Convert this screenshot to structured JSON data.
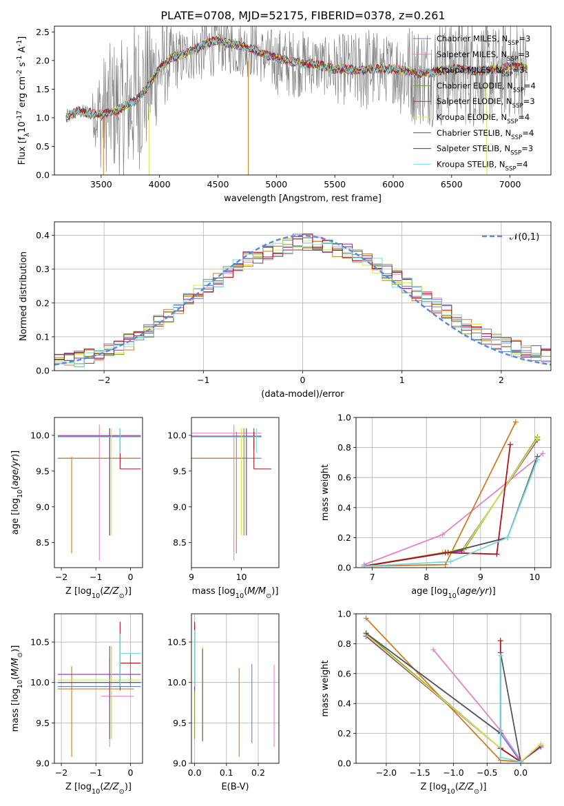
{
  "figure": {
    "title": "PLATE=0708, MJD=52175, FIBERID=0378, z=0.261"
  },
  "legend_entries": [
    {
      "label": "Chabrier MILES, N$_{SSP}$=3",
      "color": "#5b7fd6"
    },
    {
      "label": "Salpeter MILES, N$_{SSP}$=3",
      "color": "#e085c0"
    },
    {
      "label": "Kroupa MILES, N$_{SSP}$=3",
      "color": "#d07a20"
    },
    {
      "label": "Chabrier ELODIE, N$_{SSP}$=4",
      "color": "#7a9a3a"
    },
    {
      "label": "Salpeter ELODIE, N$_{SSP}$=3",
      "color": "#8a2aa8"
    },
    {
      "label": "Kroupa ELODIE, N$_{SSP}$=4",
      "color": "#d4e84a"
    },
    {
      "label": "Chabrier STELIB, N$_{SSP}$=4",
      "color": "#555555"
    },
    {
      "label": "Salpeter STELIB, N$_{SSP}$=3",
      "color": "#b0101a"
    },
    {
      "label": "Kroupa STELIB, N$_{SSP}$=4",
      "color": "#7ad8dc"
    }
  ],
  "chart_data": [
    {
      "id": "spectrum",
      "type": "line",
      "xlabel": "wavelength [Angstrom, rest frame]",
      "ylabel": "Flux [f$_\\lambda$10$^{-17}$ erg cm$^{-2}$ s$^{-1}$ A$^{-1}$]",
      "xlim": [
        3100,
        7350
      ],
      "ylim": [
        0,
        2.6
      ],
      "xticks": [
        3500,
        4000,
        4500,
        5000,
        5500,
        6000,
        6500,
        7000
      ],
      "yticks": [
        0.0,
        0.5,
        1.0,
        1.5,
        2.0,
        2.5
      ],
      "data_series": {
        "name": "data",
        "color": "#808080",
        "x": [
          3200,
          3300,
          3400,
          3500,
          3600,
          3700,
          3800,
          3900,
          4000,
          4100,
          4200,
          4300,
          4400,
          4500,
          4600,
          4700,
          4800,
          4900,
          5000,
          5100,
          5200,
          5300,
          5400,
          5500,
          5600,
          5700,
          5800,
          5900,
          6000,
          6100,
          6200,
          6300,
          6400,
          6500,
          6600,
          6700,
          6800,
          6900,
          7000,
          7100,
          7150
        ],
        "y": [
          1.0,
          1.1,
          1.1,
          1.05,
          1.2,
          1.15,
          1.35,
          1.6,
          1.85,
          2.0,
          2.05,
          2.15,
          2.2,
          2.3,
          2.25,
          2.2,
          2.2,
          2.05,
          2.0,
          1.95,
          1.95,
          1.95,
          1.9,
          1.85,
          1.85,
          1.8,
          1.85,
          1.85,
          1.85,
          1.8,
          1.75,
          1.75,
          1.8,
          1.85,
          1.85,
          1.8,
          1.8,
          1.8,
          1.85,
          1.85,
          1.8
        ],
        "noise_amplitude": [
          0.15,
          0.12,
          0.15,
          1.0,
          1.2,
          1.2,
          1.4,
          1.2,
          0.9,
          0.6,
          0.5,
          0.5,
          0.6,
          0.5,
          0.5,
          0.5,
          0.5,
          0.5,
          0.6,
          0.6,
          0.6,
          0.55,
          0.5,
          0.6,
          0.65,
          0.7,
          0.8,
          0.6,
          0.6,
          0.9,
          0.9,
          0.9,
          1.0,
          0.9,
          1.0,
          1.0,
          0.9,
          0.8,
          0.9,
          0.9,
          0.8
        ]
      },
      "model_series": {
        "name": "models",
        "x": [
          3200,
          3300,
          3400,
          3500,
          3600,
          3700,
          3800,
          3900,
          4000,
          4100,
          4200,
          4300,
          4400,
          4500,
          4600,
          4700,
          4800,
          4900,
          5000,
          5100,
          5200,
          5300,
          5400,
          5500,
          5600,
          5700,
          5800,
          5900,
          6000,
          6100,
          6200,
          6300,
          6400,
          6500,
          6600,
          6700,
          6800,
          6900,
          7000,
          7100,
          7150
        ],
        "y": [
          1.0,
          1.12,
          1.08,
          1.05,
          1.1,
          1.2,
          1.3,
          1.55,
          1.85,
          2.05,
          2.1,
          2.2,
          2.3,
          2.35,
          2.3,
          2.25,
          2.2,
          2.1,
          2.05,
          2.0,
          1.95,
          1.95,
          1.9,
          1.85,
          1.85,
          1.82,
          1.85,
          1.85,
          1.85,
          1.82,
          1.78,
          1.78,
          1.82,
          1.85,
          1.85,
          1.82,
          1.82,
          1.85,
          1.9,
          1.9,
          1.85
        ]
      }
    },
    {
      "id": "residual-hist",
      "type": "histogram",
      "xlabel": "(data-model)/error",
      "ylabel": "Normed distribution",
      "xlim": [
        -2.5,
        2.5
      ],
      "ylim": [
        0,
        0.44
      ],
      "xticks": [
        -2,
        -1,
        0,
        1,
        2
      ],
      "yticks": [
        0.0,
        0.1,
        0.2,
        0.3,
        0.4
      ],
      "legend": "$\\mathcal{N}(0,1)$",
      "normal_curve": {
        "mean": 0,
        "sigma": 1,
        "color": "#5b8ad6"
      },
      "bin_edges_start": -2.5,
      "bin_width": 0.1,
      "bins_base": [
        0.03,
        0.03,
        0.035,
        0.04,
        0.05,
        0.06,
        0.07,
        0.085,
        0.1,
        0.12,
        0.14,
        0.16,
        0.18,
        0.21,
        0.23,
        0.25,
        0.27,
        0.29,
        0.31,
        0.33,
        0.34,
        0.35,
        0.36,
        0.37,
        0.38,
        0.38,
        0.38,
        0.37,
        0.36,
        0.35,
        0.34,
        0.33,
        0.31,
        0.29,
        0.27,
        0.25,
        0.23,
        0.21,
        0.19,
        0.17,
        0.15,
        0.13,
        0.115,
        0.1,
        0.085,
        0.075,
        0.065,
        0.055,
        0.05,
        0.045
      ]
    },
    {
      "id": "age-vs-z",
      "type": "scatter",
      "xlabel": "Z [log$_{10}$($Z/Z_\\odot$)]",
      "ylabel": "age  [log$_{10}$($age/yr$)]",
      "xlim": [
        -2.2,
        0.35
      ],
      "ylim": [
        8.15,
        10.25
      ],
      "xticks": [
        -2,
        -1,
        0
      ],
      "yticks": [
        8.5,
        9.0,
        9.5,
        10.0
      ]
    },
    {
      "id": "age-vs-mass",
      "type": "scatter",
      "xlabel": "mass [log$_{10}$($M/M_\\odot$)]",
      "xlim": [
        9.0,
        10.75
      ],
      "ylim": [
        8.15,
        10.25
      ],
      "xticks": [
        9,
        10
      ],
      "yticks": [
        8.5,
        9.0,
        9.5,
        10.0
      ]
    },
    {
      "id": "weight-vs-age",
      "type": "line",
      "xlabel": "age  [log$_{10}$($age/yr$)]",
      "ylabel": "mass weight",
      "xlim": [
        6.7,
        10.3
      ],
      "ylim": [
        0,
        1.0
      ],
      "xticks": [
        7,
        8,
        9,
        10
      ],
      "yticks": [
        0.0,
        0.2,
        0.4,
        0.6,
        0.8,
        1.0
      ],
      "series": [
        {
          "color": "#5b7fd6",
          "x": [
            6.85,
            8.4,
            9.5,
            10.05
          ],
          "y": [
            0.01,
            0.1,
            0.2,
            0.72
          ]
        },
        {
          "color": "#e085c0",
          "x": [
            6.85,
            8.3,
            10.15
          ],
          "y": [
            0.02,
            0.22,
            0.76
          ]
        },
        {
          "color": "#d07a20",
          "x": [
            6.85,
            8.35,
            9.65
          ],
          "y": [
            0.01,
            0.02,
            0.97
          ]
        },
        {
          "color": "#7a9a3a",
          "x": [
            6.85,
            8.3,
            8.7,
            10.05
          ],
          "y": [
            0.01,
            0.1,
            0.12,
            0.87
          ]
        },
        {
          "color": "#8a2aa8",
          "x": [
            6.85,
            8.3,
            8.65,
            10.05
          ],
          "y": [
            0.01,
            0.1,
            0.11,
            0.85
          ]
        },
        {
          "color": "#d4e84a",
          "x": [
            6.85,
            8.3,
            8.7,
            10.05
          ],
          "y": [
            0.01,
            0.1,
            0.13,
            0.86
          ]
        },
        {
          "color": "#555555",
          "x": [
            6.85,
            8.4,
            9.5,
            10.05
          ],
          "y": [
            0.01,
            0.1,
            0.2,
            0.74
          ]
        },
        {
          "color": "#b0101a",
          "x": [
            6.85,
            8.35,
            9.3,
            9.55
          ],
          "y": [
            0.01,
            0.1,
            0.09,
            0.82
          ]
        },
        {
          "color": "#7ad8dc",
          "x": [
            6.85,
            8.45,
            9.5,
            10.05
          ],
          "y": [
            0.01,
            0.04,
            0.2,
            0.72
          ]
        }
      ]
    },
    {
      "id": "mass-vs-z",
      "type": "scatter",
      "xlabel": "Z [log$_{10}$($Z/Z_\\odot$)]",
      "ylabel": "mass [log$_{10}$($M/M_\\odot$)]",
      "xlim": [
        -2.2,
        0.35
      ],
      "ylim": [
        9.0,
        10.85
      ],
      "xticks": [
        -2,
        -1,
        0
      ],
      "yticks": [
        9.0,
        9.5,
        10.0,
        10.5
      ]
    },
    {
      "id": "mass-vs-ebv",
      "type": "scatter",
      "xlabel": "E(B-V)",
      "xlim": [
        -0.01,
        0.265
      ],
      "ylim": [
        9.0,
        10.85
      ],
      "xticks": [
        0.0,
        0.1,
        0.2
      ],
      "yticks": [
        9.0,
        9.5,
        10.0,
        10.5
      ]
    },
    {
      "id": "weight-vs-z",
      "type": "line",
      "xlabel": "Z [log$_{10}$($Z/Z_\\odot$)]",
      "ylabel": "mass weight",
      "xlim": [
        -2.45,
        0.45
      ],
      "ylim": [
        0,
        1.0
      ],
      "xticks": [
        -2.0,
        -1.5,
        -1.0,
        -0.5,
        0.0
      ],
      "yticks": [
        0.0,
        0.2,
        0.4,
        0.6,
        0.8,
        1.0
      ],
      "series": [
        {
          "color": "#5b7fd6",
          "x": [
            -2.3,
            -0.3,
            0.0
          ],
          "y": [
            0.87,
            0.2,
            0.01
          ]
        },
        {
          "color": "#e085c0",
          "x": [
            -1.3,
            -0.3,
            0.0
          ],
          "y": [
            0.76,
            0.22,
            0.02
          ]
        },
        {
          "color": "#d07a20",
          "x": [
            -2.3,
            -0.3,
            0.0
          ],
          "y": [
            0.97,
            0.02,
            0.01
          ]
        },
        {
          "color": "#7a9a3a",
          "x": [
            -2.3,
            -0.3,
            0.0,
            0.3
          ],
          "y": [
            0.87,
            0.1,
            0.01,
            0.12
          ]
        },
        {
          "color": "#8a2aa8",
          "x": [
            -2.3,
            -0.3,
            0.0,
            0.3
          ],
          "y": [
            0.85,
            0.1,
            0.01,
            0.11
          ]
        },
        {
          "color": "#d4e84a",
          "x": [
            -2.3,
            -0.3,
            0.0,
            0.3
          ],
          "y": [
            0.86,
            0.1,
            0.01,
            0.13
          ]
        },
        {
          "color": "#555555",
          "x": [
            -2.3,
            -0.3,
            -0.3,
            0.0
          ],
          "y": [
            0.87,
            0.2,
            0.74,
            0.01
          ]
        },
        {
          "color": "#b0101a",
          "x": [
            -0.3,
            -0.3,
            0.0
          ],
          "y": [
            0.82,
            0.1,
            0.01
          ]
        },
        {
          "color": "#7ad8dc",
          "x": [
            -0.3,
            -0.3,
            0.0
          ],
          "y": [
            0.72,
            0.04,
            0.01
          ]
        }
      ]
    }
  ],
  "crosses_age_z": [
    {
      "color": "#5b7fd6",
      "x": 0.1,
      "y": 9.68,
      "x0": -2.1,
      "x1": 0.3,
      "y0": 9.68,
      "y1": 9.68
    },
    {
      "color": "#e085c0",
      "x": -0.9,
      "y": 10.0,
      "x0": -2.1,
      "x1": 0.3,
      "y0": 8.25,
      "y1": 10.15
    },
    {
      "color": "#d07a20",
      "x": -1.7,
      "y": 9.68,
      "x0": -2.1,
      "x1": 0.3,
      "y0": 8.35,
      "y1": 9.7
    },
    {
      "color": "#7a9a3a",
      "x": -0.6,
      "y": 9.98,
      "x0": -2.1,
      "x1": 0.3,
      "y0": 8.6,
      "y1": 10.1
    },
    {
      "color": "#8a2aa8",
      "x": -0.6,
      "y": 9.99,
      "x0": -2.1,
      "x1": 0.3,
      "y0": 8.6,
      "y1": 10.1
    },
    {
      "color": "#d4e84a",
      "x": -0.55,
      "y": 9.98,
      "x0": -2.1,
      "x1": 0.3,
      "y0": 8.6,
      "y1": 10.1
    },
    {
      "color": "#555555",
      "x": -0.3,
      "y": 9.98,
      "x0": -2.1,
      "x1": 0.3,
      "y0": 9.8,
      "y1": 10.1
    },
    {
      "color": "#b0101a",
      "x": -0.3,
      "y": 9.53,
      "x0": -0.3,
      "x1": 0.3,
      "y0": 9.53,
      "y1": 10.05
    },
    {
      "color": "#7ad8dc",
      "x": -0.3,
      "y": 9.98,
      "x0": -2.1,
      "x1": 0.3,
      "y0": 9.75,
      "y1": 10.1
    }
  ],
  "crosses_age_mass": [
    {
      "color": "#5b7fd6",
      "x": 10.2,
      "y": 9.68,
      "x0": 9.0,
      "x1": 10.4,
      "y0": 9.68,
      "y1": 9.68
    },
    {
      "color": "#e085c0",
      "x": 9.85,
      "y": 10.03,
      "x0": 9.0,
      "x1": 10.4,
      "y0": 8.25,
      "y1": 10.15
    },
    {
      "color": "#d07a20",
      "x": 9.9,
      "y": 9.68,
      "x0": 9.0,
      "x1": 10.1,
      "y0": 8.35,
      "y1": 10.05
    },
    {
      "color": "#7a9a3a",
      "x": 10.05,
      "y": 9.98,
      "x0": 9.0,
      "x1": 10.4,
      "y0": 8.6,
      "y1": 10.1
    },
    {
      "color": "#8a2aa8",
      "x": 10.1,
      "y": 9.99,
      "x0": 9.0,
      "x1": 10.4,
      "y0": 8.6,
      "y1": 10.1
    },
    {
      "color": "#d4e84a",
      "x": 10.0,
      "y": 9.98,
      "x0": 9.0,
      "x1": 10.4,
      "y0": 8.6,
      "y1": 10.1
    },
    {
      "color": "#555555",
      "x": 10.25,
      "y": 9.98,
      "x0": 9.0,
      "x1": 10.4,
      "y0": 9.8,
      "y1": 10.1
    },
    {
      "color": "#b0101a",
      "x": 10.25,
      "y": 9.53,
      "x0": 10.25,
      "x1": 10.6,
      "y0": 9.53,
      "y1": 10.05
    },
    {
      "color": "#7ad8dc",
      "x": 10.3,
      "y": 9.98,
      "x0": 9.0,
      "x1": 10.4,
      "y0": 9.75,
      "y1": 10.1
    }
  ],
  "crosses_mass_z": [
    {
      "color": "#5b7fd6",
      "x": 0.0,
      "y": 9.95,
      "x0": -2.1,
      "x1": 0.3,
      "y0": 9.95,
      "y1": 10.35
    },
    {
      "color": "#e085c0",
      "x": -0.6,
      "y": 9.83,
      "x0": -0.85,
      "x1": 0.1,
      "y0": 9.2,
      "y1": 10.3
    },
    {
      "color": "#d07a20",
      "x": -1.7,
      "y": 9.92,
      "x0": -2.1,
      "x1": 0.1,
      "y0": 9.08,
      "y1": 10.2
    },
    {
      "color": "#7a9a3a",
      "x": -0.55,
      "y": 10.0,
      "x0": -2.1,
      "x1": 0.3,
      "y0": 9.3,
      "y1": 10.45
    },
    {
      "color": "#8a2aa8",
      "x": -0.6,
      "y": 10.1,
      "x0": -2.1,
      "x1": 0.3,
      "y0": 9.3,
      "y1": 10.45
    },
    {
      "color": "#d4e84a",
      "x": -0.55,
      "y": 10.03,
      "x0": -2.1,
      "x1": 0.3,
      "y0": 9.3,
      "y1": 10.45
    },
    {
      "color": "#555555",
      "x": -0.3,
      "y": 10.0,
      "x0": -2.1,
      "x1": 0.3,
      "y0": 9.9,
      "y1": 10.6
    },
    {
      "color": "#b0101a",
      "x": -0.3,
      "y": 10.24,
      "x0": -0.3,
      "x1": 0.3,
      "y0": 9.95,
      "y1": 10.75
    },
    {
      "color": "#7ad8dc",
      "x": -0.3,
      "y": 10.36,
      "x0": -0.3,
      "x1": 0.3,
      "y0": 9.95,
      "y1": 10.6
    }
  ],
  "crosses_mass_ebv": [
    {
      "color": "#5b7fd6",
      "x": 0.18,
      "y": 9.95,
      "x0": 0.18,
      "x1": 0.18,
      "y0": 9.25,
      "y1": 10.23
    },
    {
      "color": "#e085c0",
      "x": 0.25,
      "y": 9.9,
      "x0": 0.25,
      "x1": 0.25,
      "y0": 9.2,
      "y1": 10.22
    },
    {
      "color": "#d07a20",
      "x": 0.14,
      "y": 9.92,
      "x0": 0.14,
      "x1": 0.14,
      "y0": 9.08,
      "y1": 10.18
    },
    {
      "color": "#7a9a3a",
      "x": 0.0,
      "y": 10.0,
      "x0": 0.0,
      "x1": 0.0,
      "y0": 9.3,
      "y1": 10.7
    },
    {
      "color": "#8a2aa8",
      "x": 0.0,
      "y": 10.1,
      "x0": 0.0,
      "x1": 0.0,
      "y0": 9.9,
      "y1": 10.7
    },
    {
      "color": "#d4e84a",
      "x": 0.025,
      "y": 10.0,
      "x0": 0.025,
      "x1": 0.025,
      "y0": 9.3,
      "y1": 10.45
    },
    {
      "color": "#555555",
      "x": 0.025,
      "y": 10.0,
      "x0": 0.025,
      "x1": 0.025,
      "y0": 9.27,
      "y1": 10.42
    },
    {
      "color": "#b0101a",
      "x": 0.0,
      "y": 10.24,
      "x0": 0.0,
      "x1": 0.0,
      "y0": 9.95,
      "y1": 10.75
    },
    {
      "color": "#7ad8dc",
      "x": 0.0,
      "y": 10.36,
      "x0": 0.0,
      "x1": 0.0,
      "y0": 9.95,
      "y1": 10.65
    }
  ]
}
